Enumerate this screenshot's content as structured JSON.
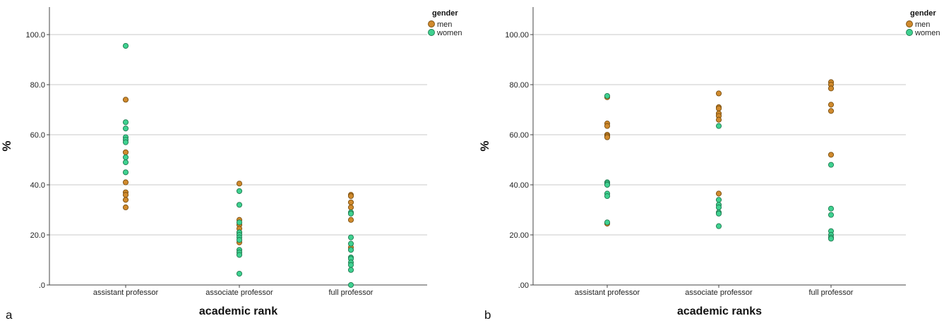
{
  "colors": {
    "men": "#D08A2D",
    "women": "#3FD190",
    "men_edge": "#7a4f10",
    "women_edge": "#1f7a50",
    "grid": "#c8c8c8",
    "axis": "#444444"
  },
  "chart_data": [
    {
      "type": "scatter",
      "panel_label": "a",
      "xlabel": "academic rank",
      "ylabel": "%",
      "categories": [
        "assistant professor",
        "associate professor",
        "full professor"
      ],
      "ylim": [
        0,
        111
      ],
      "yticks": [
        0,
        20,
        40,
        60,
        80,
        100
      ],
      "ytick_labels": [
        ".0",
        "20.0",
        "40.0",
        "60.0",
        "80.0",
        "100.0"
      ],
      "legend": {
        "title": "gender",
        "entries": [
          "men",
          "women"
        ],
        "position": "top-right"
      },
      "series": [
        {
          "name": "men",
          "points": [
            {
              "x": "assistant professor",
              "y": 74
            },
            {
              "x": "assistant professor",
              "y": 53
            },
            {
              "x": "assistant professor",
              "y": 41
            },
            {
              "x": "assistant professor",
              "y": 37
            },
            {
              "x": "assistant professor",
              "y": 36
            },
            {
              "x": "assistant professor",
              "y": 34
            },
            {
              "x": "assistant professor",
              "y": 31
            },
            {
              "x": "associate professor",
              "y": 40.5
            },
            {
              "x": "associate professor",
              "y": 26
            },
            {
              "x": "associate professor",
              "y": 24
            },
            {
              "x": "associate professor",
              "y": 22.5
            },
            {
              "x": "associate professor",
              "y": 21
            },
            {
              "x": "associate professor",
              "y": 17
            },
            {
              "x": "full professor",
              "y": 36
            },
            {
              "x": "full professor",
              "y": 35.5
            },
            {
              "x": "full professor",
              "y": 33
            },
            {
              "x": "full professor",
              "y": 31
            },
            {
              "x": "full professor",
              "y": 26
            },
            {
              "x": "full professor",
              "y": 15
            }
          ]
        },
        {
          "name": "women",
          "points": [
            {
              "x": "assistant professor",
              "y": 95.5
            },
            {
              "x": "assistant professor",
              "y": 65
            },
            {
              "x": "assistant professor",
              "y": 62.5
            },
            {
              "x": "assistant professor",
              "y": 59
            },
            {
              "x": "assistant professor",
              "y": 58
            },
            {
              "x": "assistant professor",
              "y": 57
            },
            {
              "x": "assistant professor",
              "y": 51
            },
            {
              "x": "assistant professor",
              "y": 49
            },
            {
              "x": "assistant professor",
              "y": 45
            },
            {
              "x": "associate professor",
              "y": 37.5
            },
            {
              "x": "associate professor",
              "y": 32
            },
            {
              "x": "associate professor",
              "y": 25
            },
            {
              "x": "associate professor",
              "y": 21
            },
            {
              "x": "associate professor",
              "y": 20
            },
            {
              "x": "associate professor",
              "y": 19
            },
            {
              "x": "associate professor",
              "y": 18
            },
            {
              "x": "associate professor",
              "y": 14
            },
            {
              "x": "associate professor",
              "y": 13
            },
            {
              "x": "associate professor",
              "y": 12
            },
            {
              "x": "associate professor",
              "y": 4.5
            },
            {
              "x": "full professor",
              "y": 29
            },
            {
              "x": "full professor",
              "y": 28.5
            },
            {
              "x": "full professor",
              "y": 19
            },
            {
              "x": "full professor",
              "y": 16.5
            },
            {
              "x": "full professor",
              "y": 14
            },
            {
              "x": "full professor",
              "y": 11
            },
            {
              "x": "full professor",
              "y": 10.5
            },
            {
              "x": "full professor",
              "y": 9
            },
            {
              "x": "full professor",
              "y": 8
            },
            {
              "x": "full professor",
              "y": 6
            },
            {
              "x": "full professor",
              "y": 0
            }
          ]
        }
      ]
    },
    {
      "type": "scatter",
      "panel_label": "b",
      "xlabel": "academic ranks",
      "ylabel": "%",
      "categories": [
        "assistant professor",
        "associate professor",
        "full professor"
      ],
      "ylim": [
        0,
        111
      ],
      "yticks": [
        0,
        20,
        40,
        60,
        80,
        100
      ],
      "ytick_labels": [
        ".00",
        "20.00",
        "40.00",
        "60.00",
        "80.00",
        "100.00"
      ],
      "legend": {
        "title": "gender",
        "entries": [
          "men",
          "women"
        ],
        "position": "top-right"
      },
      "series": [
        {
          "name": "men",
          "points": [
            {
              "x": "assistant professor",
              "y": 75
            },
            {
              "x": "assistant professor",
              "y": 64.5
            },
            {
              "x": "assistant professor",
              "y": 63.5
            },
            {
              "x": "assistant professor",
              "y": 60
            },
            {
              "x": "assistant professor",
              "y": 59.5
            },
            {
              "x": "assistant professor",
              "y": 59
            },
            {
              "x": "assistant professor",
              "y": 24.5
            },
            {
              "x": "associate professor",
              "y": 76.5
            },
            {
              "x": "associate professor",
              "y": 71
            },
            {
              "x": "associate professor",
              "y": 70.5
            },
            {
              "x": "associate professor",
              "y": 68.5
            },
            {
              "x": "associate professor",
              "y": 67.5
            },
            {
              "x": "associate professor",
              "y": 66
            },
            {
              "x": "associate professor",
              "y": 36.5
            },
            {
              "x": "full professor",
              "y": 81
            },
            {
              "x": "full professor",
              "y": 80
            },
            {
              "x": "full professor",
              "y": 78.5
            },
            {
              "x": "full professor",
              "y": 72
            },
            {
              "x": "full professor",
              "y": 69.5
            },
            {
              "x": "full professor",
              "y": 52
            }
          ]
        },
        {
          "name": "women",
          "points": [
            {
              "x": "assistant professor",
              "y": 75.5
            },
            {
              "x": "assistant professor",
              "y": 41
            },
            {
              "x": "assistant professor",
              "y": 40.5
            },
            {
              "x": "assistant professor",
              "y": 40
            },
            {
              "x": "assistant professor",
              "y": 36.5
            },
            {
              "x": "assistant professor",
              "y": 35.5
            },
            {
              "x": "assistant professor",
              "y": 25
            },
            {
              "x": "associate professor",
              "y": 63.5
            },
            {
              "x": "associate professor",
              "y": 34
            },
            {
              "x": "associate professor",
              "y": 32
            },
            {
              "x": "associate professor",
              "y": 31
            },
            {
              "x": "associate professor",
              "y": 29
            },
            {
              "x": "associate professor",
              "y": 28.5
            },
            {
              "x": "associate professor",
              "y": 23.5
            },
            {
              "x": "full professor",
              "y": 48
            },
            {
              "x": "full professor",
              "y": 30.5
            },
            {
              "x": "full professor",
              "y": 28
            },
            {
              "x": "full professor",
              "y": 21.5
            },
            {
              "x": "full professor",
              "y": 20
            },
            {
              "x": "full professor",
              "y": 19
            },
            {
              "x": "full professor",
              "y": 18.5
            }
          ]
        }
      ]
    }
  ]
}
